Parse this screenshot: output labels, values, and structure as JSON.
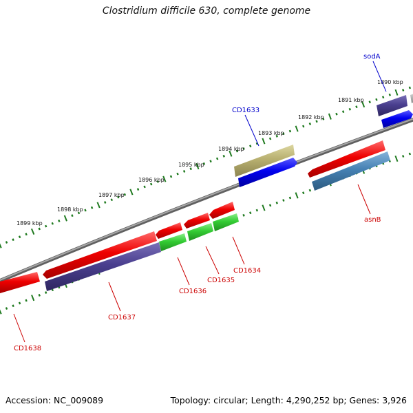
{
  "title": "Clostridium difficile 630, complete genome",
  "footer": {
    "accession": "Accession: NC_009089",
    "stats": "Topology: circular; Length: 4,290,252 bp; Genes: 3,926"
  },
  "colors": {
    "backbone": "#808080",
    "tick": "#1f7a1f",
    "red_gene": "#ee0000",
    "blue_gene": "#0000ee",
    "purple_gene": "#4a3f8f",
    "green_gene": "#33cc33",
    "khaki_gene": "#b8b070",
    "steel_gene": "#4682b4",
    "label_forward": "#0000cc",
    "label_reverse": "#cc0000"
  },
  "ruler": {
    "unit": "kbp",
    "labels": [
      "1890 kbp",
      "1891 kbp",
      "1892 kbp",
      "1893 kbp",
      "1894 kbp",
      "1895 kbp",
      "1896 kbp",
      "1897 kbp",
      "1898 kbp",
      "1899 kbp"
    ]
  },
  "genes": [
    {
      "name": "sodA",
      "strand": "forward",
      "label_color": "#0000cc"
    },
    {
      "name": "CD1633",
      "strand": "forward",
      "label_color": "#0000cc"
    },
    {
      "name": "asnB",
      "strand": "reverse",
      "label_color": "#cc0000"
    },
    {
      "name": "CD1634",
      "strand": "reverse",
      "label_color": "#cc0000"
    },
    {
      "name": "CD1635",
      "strand": "reverse",
      "label_color": "#cc0000"
    },
    {
      "name": "CD1636",
      "strand": "reverse",
      "label_color": "#cc0000"
    },
    {
      "name": "CD1637",
      "strand": "reverse",
      "label_color": "#cc0000"
    },
    {
      "name": "CD1638",
      "strand": "reverse",
      "label_color": "#cc0000"
    }
  ]
}
